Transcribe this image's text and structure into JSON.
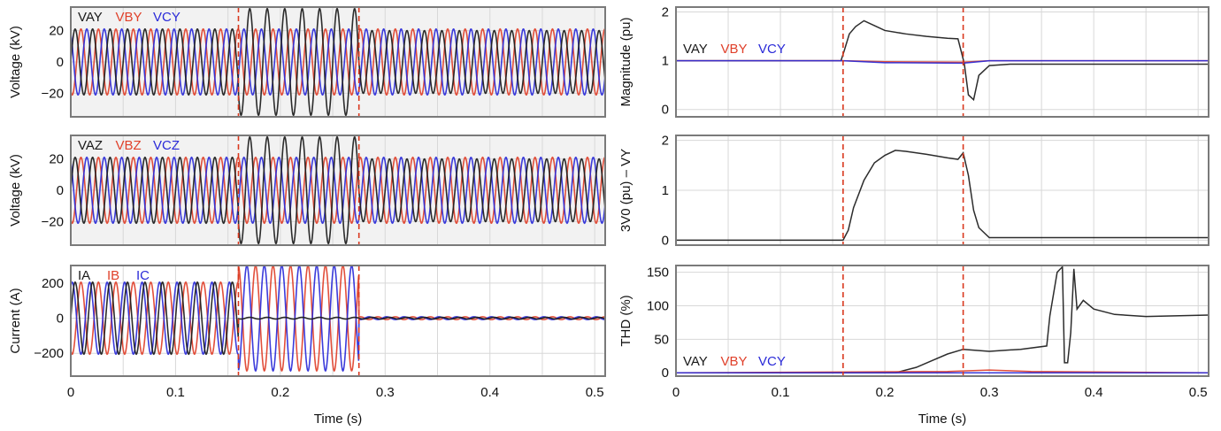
{
  "colors": {
    "phase_a": "#1a1a1a",
    "phase_b": "#e0402a",
    "phase_c": "#2a2ad8",
    "event_marker": "#d9381e",
    "frame": "#7a7a7a",
    "grid": "#d8d8d8",
    "plot_bg_voltage": "#f2f2f2",
    "plot_bg": "#ffffff"
  },
  "shared": {
    "xlabel": "Time (s)",
    "x_ticks": [
      0,
      0.1,
      0.2,
      0.3,
      0.4,
      0.5
    ],
    "x_tick_labels": [
      "0",
      "0.1",
      "0.2",
      "0.3",
      "0.4",
      "0.5"
    ],
    "xlim": [
      0,
      0.51
    ],
    "event_times": [
      0.16,
      0.275
    ]
  },
  "chart_data": [
    {
      "type": "line",
      "id": "voltage-y",
      "ylabel": "Voltage (kV)",
      "ylim": [
        -35,
        35
      ],
      "y_ticks": [
        -20,
        0,
        20
      ],
      "y_tick_labels": [
        "−20",
        "0",
        "20"
      ],
      "legend": [
        "VAY",
        "VBY",
        "VCY"
      ],
      "grid": true,
      "series": [
        {
          "name": "VAY",
          "frequency_hz": 60,
          "phase_deg": 0,
          "segments": [
            {
              "t0": 0,
              "t1": 0.16,
              "amplitude": 21
            },
            {
              "t0": 0.16,
              "t1": 0.275,
              "amplitude": 34
            },
            {
              "t0": 0.275,
              "t1": 0.51,
              "amplitude": 20
            }
          ]
        },
        {
          "name": "VBY",
          "frequency_hz": 60,
          "phase_deg": -120,
          "segments": [
            {
              "t0": 0,
              "t1": 0.16,
              "amplitude": 21
            },
            {
              "t0": 0.16,
              "t1": 0.275,
              "amplitude": 21
            },
            {
              "t0": 0.275,
              "t1": 0.51,
              "amplitude": 21
            }
          ]
        },
        {
          "name": "VCY",
          "frequency_hz": 60,
          "phase_deg": 120,
          "segments": [
            {
              "t0": 0,
              "t1": 0.16,
              "amplitude": 21
            },
            {
              "t0": 0.16,
              "t1": 0.275,
              "amplitude": 21
            },
            {
              "t0": 0.275,
              "t1": 0.51,
              "amplitude": 21
            }
          ]
        }
      ]
    },
    {
      "type": "line",
      "id": "voltage-z",
      "ylabel": "Voltage (kV)",
      "ylim": [
        -35,
        35
      ],
      "y_ticks": [
        -20,
        0,
        20
      ],
      "y_tick_labels": [
        "−20",
        "0",
        "20"
      ],
      "legend": [
        "VAZ",
        "VBZ",
        "VCZ"
      ],
      "grid": true,
      "series": [
        {
          "name": "VAZ",
          "frequency_hz": 60,
          "phase_deg": 0,
          "segments": [
            {
              "t0": 0,
              "t1": 0.16,
              "amplitude": 21
            },
            {
              "t0": 0.16,
              "t1": 0.275,
              "amplitude": 34
            },
            {
              "t0": 0.275,
              "t1": 0.51,
              "amplitude": 20
            }
          ]
        },
        {
          "name": "VBZ",
          "frequency_hz": 60,
          "phase_deg": -120,
          "segments": [
            {
              "t0": 0,
              "t1": 0.16,
              "amplitude": 21
            },
            {
              "t0": 0.16,
              "t1": 0.275,
              "amplitude": 21
            },
            {
              "t0": 0.275,
              "t1": 0.51,
              "amplitude": 21
            }
          ]
        },
        {
          "name": "VCZ",
          "frequency_hz": 60,
          "phase_deg": 120,
          "segments": [
            {
              "t0": 0,
              "t1": 0.16,
              "amplitude": 21
            },
            {
              "t0": 0.16,
              "t1": 0.275,
              "amplitude": 21
            },
            {
              "t0": 0.275,
              "t1": 0.51,
              "amplitude": 21
            }
          ]
        }
      ]
    },
    {
      "type": "line",
      "id": "current",
      "ylabel": "Current (A)",
      "ylim": [
        -330,
        300
      ],
      "y_ticks": [
        -200,
        0,
        200
      ],
      "y_tick_labels": [
        "−200",
        "0",
        "200"
      ],
      "legend": [
        "IA",
        "IB",
        "IC"
      ],
      "grid": true,
      "series": [
        {
          "name": "IA",
          "frequency_hz": 60,
          "phase_deg": 0,
          "segments": [
            {
              "t0": 0,
              "t1": 0.16,
              "amplitude": 205
            },
            {
              "t0": 0.16,
              "t1": 0.275,
              "amplitude": 5
            },
            {
              "t0": 0.275,
              "t1": 0.51,
              "amplitude": 5
            }
          ]
        },
        {
          "name": "IB",
          "frequency_hz": 60,
          "phase_deg": -120,
          "segments": [
            {
              "t0": 0,
              "t1": 0.16,
              "amplitude": 205
            },
            {
              "t0": 0.16,
              "t1": 0.275,
              "amplitude": 300
            },
            {
              "t0": 0.275,
              "t1": 0.51,
              "amplitude": 8
            }
          ]
        },
        {
          "name": "IC",
          "frequency_hz": 60,
          "phase_deg": 60,
          "segments": [
            {
              "t0": 0,
              "t1": 0.16,
              "amplitude": 205
            },
            {
              "t0": 0.16,
              "t1": 0.275,
              "amplitude": 300
            },
            {
              "t0": 0.275,
              "t1": 0.51,
              "amplitude": 8
            }
          ]
        }
      ]
    },
    {
      "type": "line",
      "id": "magnitude",
      "ylabel": "Magnitude (pu)",
      "ylim": [
        -0.15,
        2.1
      ],
      "y_ticks": [
        0,
        1,
        2
      ],
      "y_tick_labels": [
        "0",
        "1",
        "2"
      ],
      "legend": [
        "VAY",
        "VBY",
        "VCY"
      ],
      "grid": true,
      "series": [
        {
          "name": "VAY",
          "x": [
            0,
            0.158,
            0.161,
            0.166,
            0.172,
            0.18,
            0.19,
            0.2,
            0.22,
            0.24,
            0.26,
            0.27,
            0.276,
            0.28,
            0.285,
            0.29,
            0.3,
            0.32,
            0.4,
            0.51
          ],
          "y": [
            1.0,
            1.0,
            1.2,
            1.55,
            1.7,
            1.82,
            1.72,
            1.62,
            1.55,
            1.5,
            1.46,
            1.45,
            0.95,
            0.3,
            0.2,
            0.7,
            0.9,
            0.93,
            0.93,
            0.93
          ]
        },
        {
          "name": "VBY",
          "x": [
            0,
            0.16,
            0.2,
            0.275,
            0.3,
            0.51
          ],
          "y": [
            1.0,
            1.0,
            0.98,
            0.97,
            1.0,
            1.0
          ]
        },
        {
          "name": "VCY",
          "x": [
            0,
            0.16,
            0.2,
            0.275,
            0.3,
            0.51
          ],
          "y": [
            1.0,
            1.0,
            0.96,
            0.95,
            1.0,
            1.0
          ]
        }
      ]
    },
    {
      "type": "line",
      "id": "3v0",
      "ylabel": "3V0 (pu) – VY",
      "ylim": [
        -0.1,
        2.1
      ],
      "y_ticks": [
        0,
        1,
        2
      ],
      "y_tick_labels": [
        "0",
        "1",
        "2"
      ],
      "legend": [],
      "grid": true,
      "series": [
        {
          "x": [
            0,
            0.16,
            0.165,
            0.17,
            0.18,
            0.19,
            0.2,
            0.21,
            0.22,
            0.24,
            0.26,
            0.27,
            0.275,
            0.28,
            0.285,
            0.29,
            0.3,
            0.51
          ],
          "y": [
            0,
            0,
            0.2,
            0.65,
            1.2,
            1.55,
            1.7,
            1.8,
            1.78,
            1.72,
            1.65,
            1.62,
            1.75,
            1.3,
            0.6,
            0.25,
            0.05,
            0.05
          ]
        }
      ]
    },
    {
      "type": "line",
      "id": "thd",
      "ylabel": "THD (%)",
      "ylim": [
        -5,
        160
      ],
      "y_ticks": [
        0,
        50,
        100,
        150
      ],
      "y_tick_labels": [
        "0",
        "50",
        "100",
        "150"
      ],
      "legend": [
        "VAY",
        "VBY",
        "VCY"
      ],
      "grid": true,
      "series": [
        {
          "name": "VAY",
          "x": [
            0,
            0.21,
            0.23,
            0.245,
            0.26,
            0.275,
            0.3,
            0.33,
            0.355,
            0.358,
            0.365,
            0.37,
            0.372,
            0.375,
            0.378,
            0.381,
            0.384,
            0.39,
            0.4,
            0.42,
            0.45,
            0.51
          ],
          "y": [
            0,
            0,
            8,
            18,
            28,
            35,
            32,
            35,
            40,
            85,
            150,
            158,
            15,
            15,
            60,
            155,
            95,
            108,
            95,
            87,
            84,
            86
          ]
        },
        {
          "name": "VBY",
          "x": [
            0,
            0.26,
            0.3,
            0.34,
            0.51
          ],
          "y": [
            0,
            2,
            4,
            2,
            0
          ]
        },
        {
          "name": "VCY",
          "x": [
            0,
            0.51
          ],
          "y": [
            0,
            0
          ]
        }
      ]
    }
  ]
}
